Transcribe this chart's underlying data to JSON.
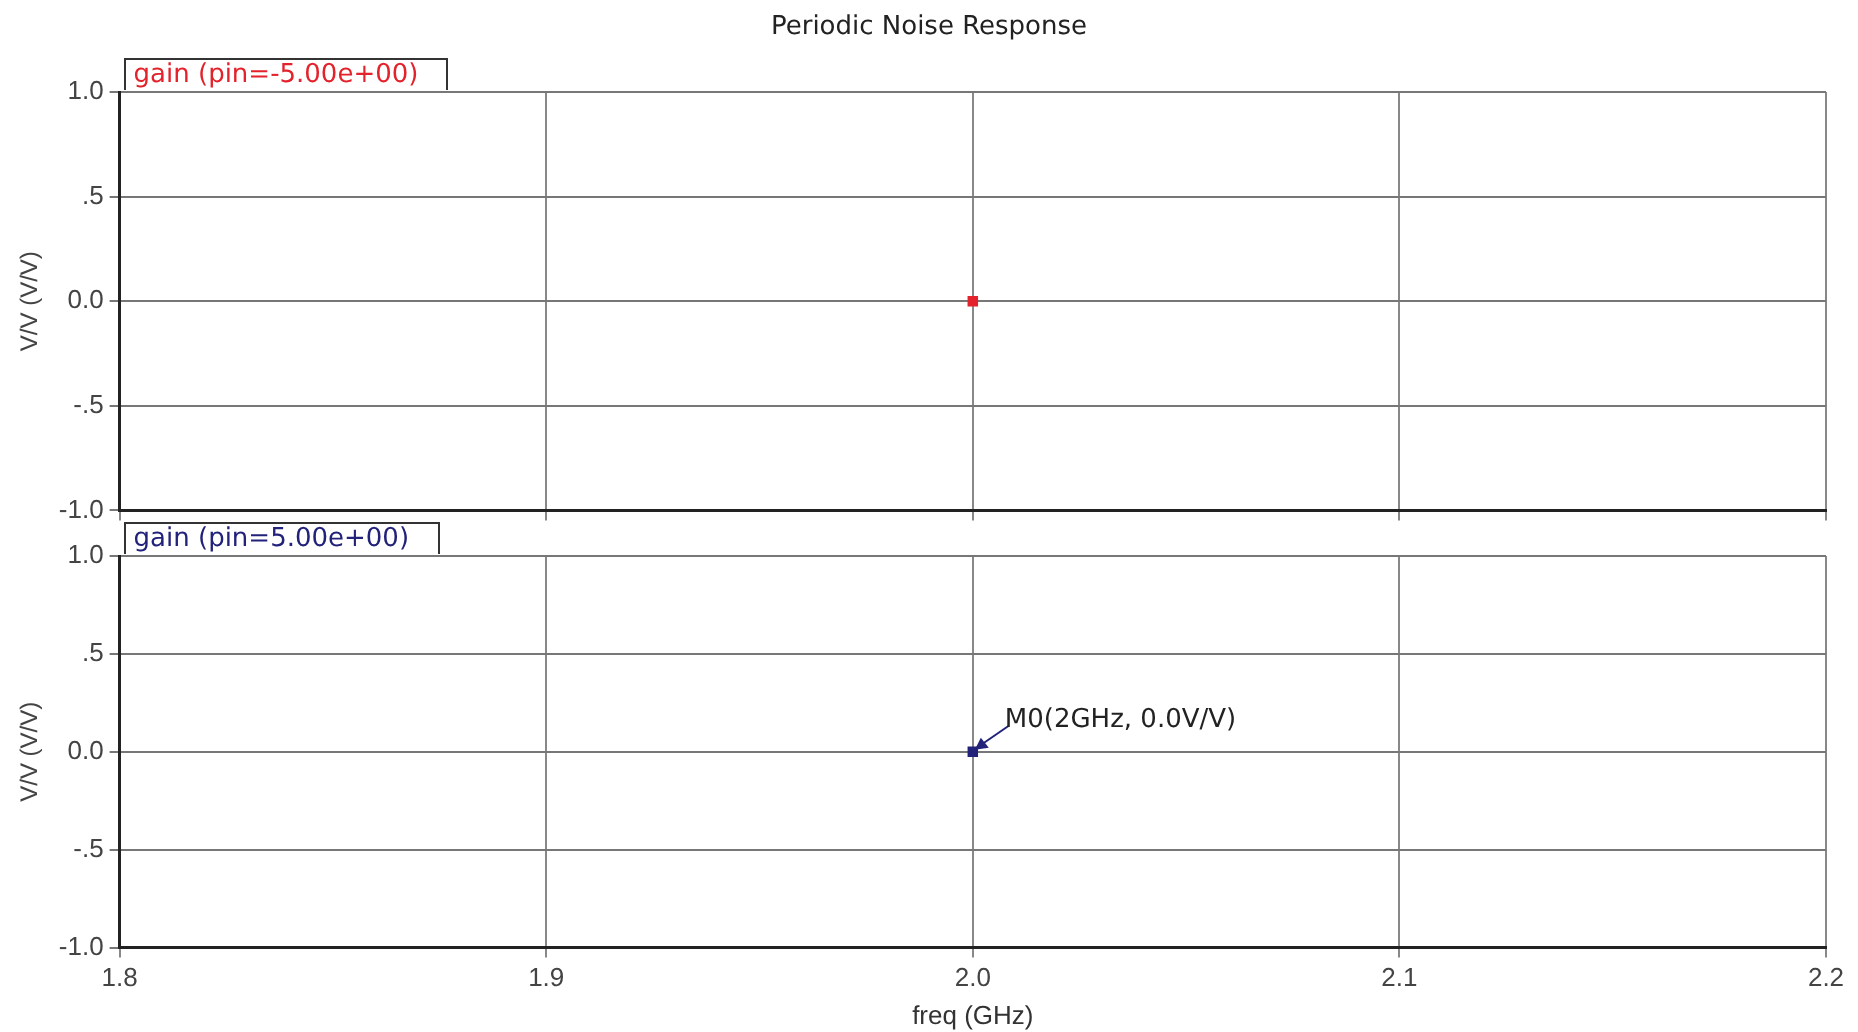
{
  "chart_data": [
    {
      "type": "scatter",
      "title": "Periodic Noise Response",
      "ylabel": "V/V (V/V)",
      "series": [
        {
          "name": "gain (pin=-5.00e+00)",
          "color": "#e3222b",
          "x": [
            2.0
          ],
          "values": [
            0
          ]
        }
      ],
      "xlim": [
        1.8,
        2.2
      ],
      "xticks": [
        1.8,
        1.9,
        2.0,
        2.1,
        2.2
      ],
      "ylim": [
        -1,
        1
      ],
      "yticks": [
        {
          "value": -1,
          "label": "-1.0"
        },
        {
          "value": -0.5,
          "label": "-.5"
        },
        {
          "value": 0,
          "label": "0.0"
        },
        {
          "value": 0.5,
          "label": ".5"
        },
        {
          "value": 1,
          "label": "1.0"
        }
      ],
      "tick_labels": "y",
      "grid": true,
      "legend": "top left",
      "marker": "square"
    },
    {
      "type": "scatter",
      "xlabel": "freq (GHz)",
      "ylabel": "V/V (V/V)",
      "series": [
        {
          "name": "gain (pin=5.00e+00)",
          "color": "#22227a",
          "x": [
            2.0
          ],
          "values": [
            0
          ]
        }
      ],
      "xlim": [
        1.8,
        2.2
      ],
      "xticks": [
        {
          "value": 1.8,
          "label": "1.8"
        },
        {
          "value": 1.9,
          "label": "1.9"
        },
        {
          "value": 2.0,
          "label": "2.0"
        },
        {
          "value": 2.1,
          "label": "2.1"
        },
        {
          "value": 2.2,
          "label": "2.2"
        }
      ],
      "ylim": [
        -1,
        1
      ],
      "yticks": [
        {
          "value": -1,
          "label": "-1.0"
        },
        {
          "value": -0.5,
          "label": "-.5"
        },
        {
          "value": 0,
          "label": "0.0"
        },
        {
          "value": 0.5,
          "label": ".5"
        },
        {
          "value": 1,
          "label": "1.0"
        }
      ],
      "annotations": [
        {
          "text": "M0(2GHz, 0.0V/V)",
          "x": 2.0,
          "y": 0
        }
      ],
      "grid": true,
      "legend": "top left",
      "marker": "square"
    }
  ]
}
